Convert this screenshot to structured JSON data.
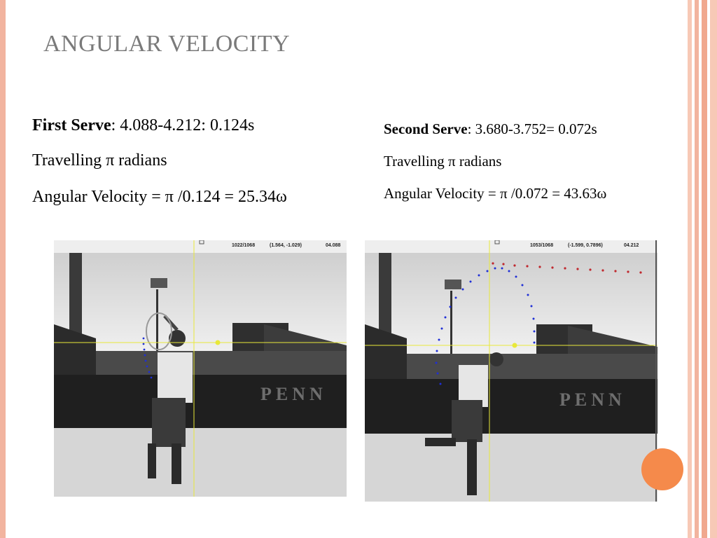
{
  "slide": {
    "title": "ANGULAR VELOCITY"
  },
  "first_serve": {
    "label": "First Serve",
    "timing": ": 4.088-4.212: 0.124s",
    "travel": "Travelling π radians",
    "velocity": "Angular Velocity = π /0.124 = 25.34ω"
  },
  "second_serve": {
    "label": "Second Serve",
    "timing": ": 3.680-3.752= 0.072s",
    "travel": "Travelling π radians",
    "velocity": "Angular Velocity = π /0.072 = 43.63ω"
  },
  "left_photo": {
    "frame": "1022/1068",
    "coords": "(1.564, -1.029)",
    "time": "04.088",
    "banner": "PENN"
  },
  "right_photo": {
    "frame": "1053/1068",
    "coords": "(-1.599, 0.7896)",
    "time": "04.212",
    "banner": "PENN"
  },
  "colors": {
    "accent_orange": "#f58a4b",
    "border_salmon": "#f2b49f",
    "title_gray": "#7a7a7a",
    "trajectory_blue": "#1f2fd6",
    "trajectory_red": "#c0282e",
    "crosshair_yellow": "#e8e83a"
  }
}
